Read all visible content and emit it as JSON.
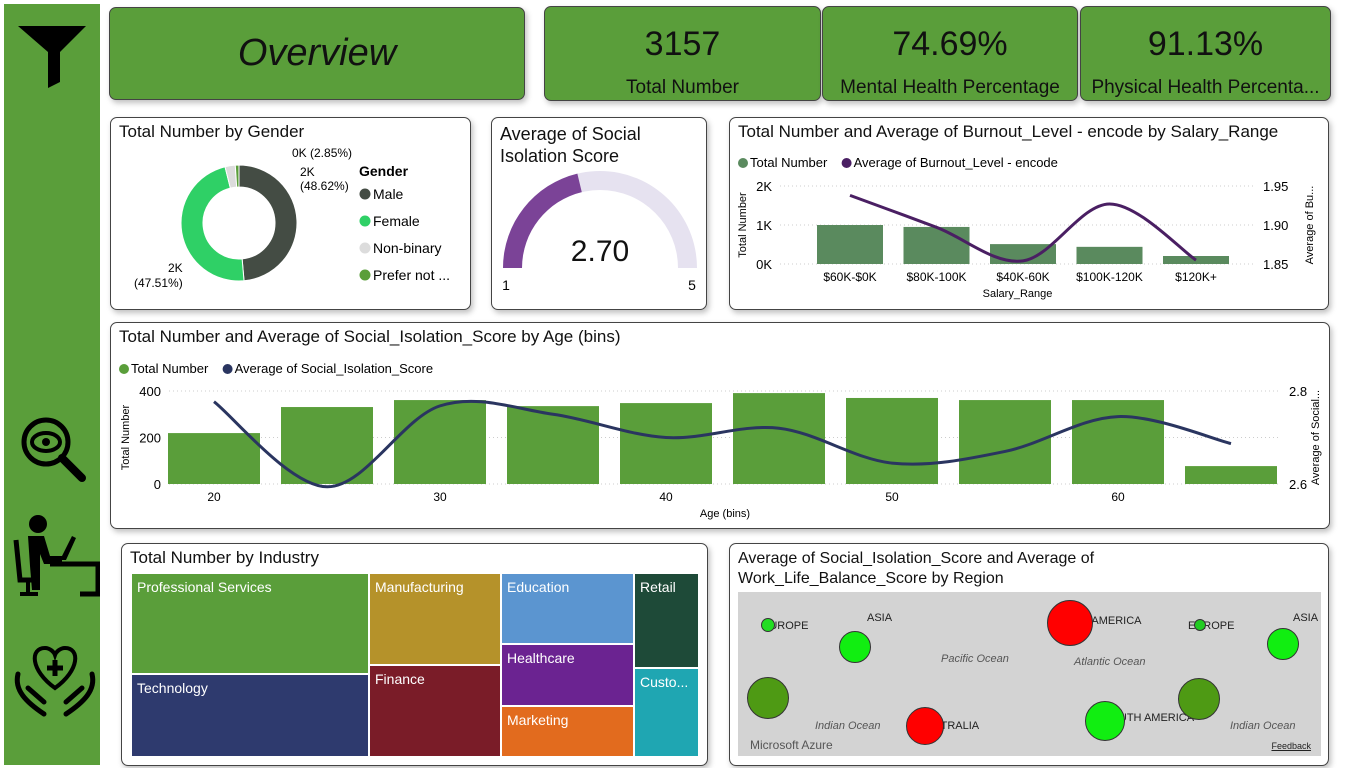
{
  "sidebar": {
    "icons": [
      "filter-icon",
      "eye-search-icon",
      "person-at-desk-icon",
      "heart-hands-icon"
    ]
  },
  "header": {
    "title": "Overview"
  },
  "kpis": [
    {
      "value": "3157",
      "label": "Total Number"
    },
    {
      "value": "74.69%",
      "label": "Mental Health Percentage"
    },
    {
      "value": "91.13%",
      "label": "Physical Health Percenta..."
    }
  ],
  "colors": {
    "brand": "#5a9e3a",
    "male": "#444c44",
    "female": "#2fd066",
    "nonbinary": "#dcdcdc",
    "prefer_not": "#5a9e3a",
    "gauge": "#7b4397",
    "gauge_bg": "#e6e2f0",
    "burnout_bar": "#5a8a5e",
    "burnout_line": "#4a1f63",
    "age_bar": "#5a9e3a",
    "age_line": "#2a3560"
  },
  "chart_data": [
    {
      "type": "pie",
      "title": "Total Number by Gender",
      "legend_title": "Gender",
      "legend": "right",
      "slices": [
        {
          "name": "Male",
          "pct": 48.62,
          "label": "2K",
          "pct_label": "(48.62%)"
        },
        {
          "name": "Female",
          "pct": 47.51,
          "label": "2K",
          "pct_label": "(47.51%)"
        },
        {
          "name": "Non-binary",
          "pct": 2.85,
          "label": "0K (2.85%)"
        },
        {
          "name": "Prefer not ...",
          "pct": 1.02
        }
      ]
    },
    {
      "type": "gauge",
      "title": "Average of Social Isolation Score",
      "value": 2.7,
      "value_label": "2.70",
      "min": 1,
      "max": 5
    },
    {
      "type": "bar",
      "title": "Total Number and Average of Burnout_Level - encode by Salary_Range",
      "legend": "top-left",
      "categories": [
        "$60K-$0K",
        "$80K-100K",
        "$40K-60K",
        "$100K-120K",
        "$120K+"
      ],
      "series": [
        {
          "name": "Total Number",
          "type": "bar",
          "values": [
            1000,
            950,
            510,
            440,
            205
          ]
        },
        {
          "name": "Average of Burnout_Level - encode",
          "type": "line",
          "values": [
            1.938,
            1.897,
            1.854,
            1.927,
            1.855
          ]
        }
      ],
      "xlabel": "Salary_Range",
      "ylabel": "Total Number",
      "y2label": "Average of Bu...",
      "ylim": [
        0,
        2000
      ],
      "y2lim": [
        1.85,
        1.95
      ],
      "yticks": [
        "0K",
        "1K",
        "2K"
      ],
      "y2ticks": [
        "1.85",
        "1.90",
        "1.95"
      ]
    },
    {
      "type": "bar",
      "title": "Total Number and Average of Social_Isolation_Score by Age (bins)",
      "legend": "top-left",
      "x": [
        20,
        25,
        30,
        35,
        40,
        45,
        50,
        55,
        60,
        65
      ],
      "series": [
        {
          "name": "Total Number",
          "type": "bar",
          "values": [
            219,
            331,
            361,
            335,
            348,
            391,
            370,
            361,
            361,
            77
          ]
        },
        {
          "name": "Average of Social_Isolation_Score",
          "type": "line",
          "values": [
            2.777,
            2.594,
            2.768,
            2.75,
            2.7,
            2.72,
            2.645,
            2.67,
            2.745,
            2.687
          ]
        }
      ],
      "xlabel": "Age (bins)",
      "ylabel": "Total Number",
      "y2label": "Average of Social...",
      "ylim": [
        0,
        400
      ],
      "y2lim": [
        2.6,
        2.8
      ],
      "xticks": [
        "20",
        "30",
        "40",
        "50",
        "60"
      ],
      "yticks": [
        "0",
        "200",
        "400"
      ],
      "y2ticks": [
        "2.6",
        "2.8"
      ]
    },
    {
      "type": "treemap",
      "title": "Total Number by Industry",
      "items": [
        {
          "name": "Professional Services",
          "color": "#5a9e3a"
        },
        {
          "name": "Technology",
          "color": "#2e3a6e"
        },
        {
          "name": "Manufacturing",
          "color": "#b5922a"
        },
        {
          "name": "Finance",
          "color": "#7a1c28"
        },
        {
          "name": "Education",
          "color": "#5b95d0"
        },
        {
          "name": "Healthcare",
          "color": "#6b2391"
        },
        {
          "name": "Marketing",
          "color": "#e26b1e"
        },
        {
          "name": "Retail",
          "color": "#1e4a38"
        },
        {
          "name": "Custo...",
          "color": "#1fa6b2"
        }
      ]
    },
    {
      "type": "map",
      "title": "Average of Social_Isolation_Score and Average of Work_Life_Balance_Score by Region",
      "labels": [
        "EUROPE",
        "ASIA",
        "NORTH AMERICA",
        "EUROPE",
        "ASIA",
        "SOUTH AMERICA",
        "AUSTRALIA",
        "Pacific Ocean",
        "Atlantic Ocean",
        "Indian Ocean",
        "Indian Ocean"
      ],
      "attribution": "Microsoft Azure",
      "feedback": "Feedback"
    }
  ]
}
